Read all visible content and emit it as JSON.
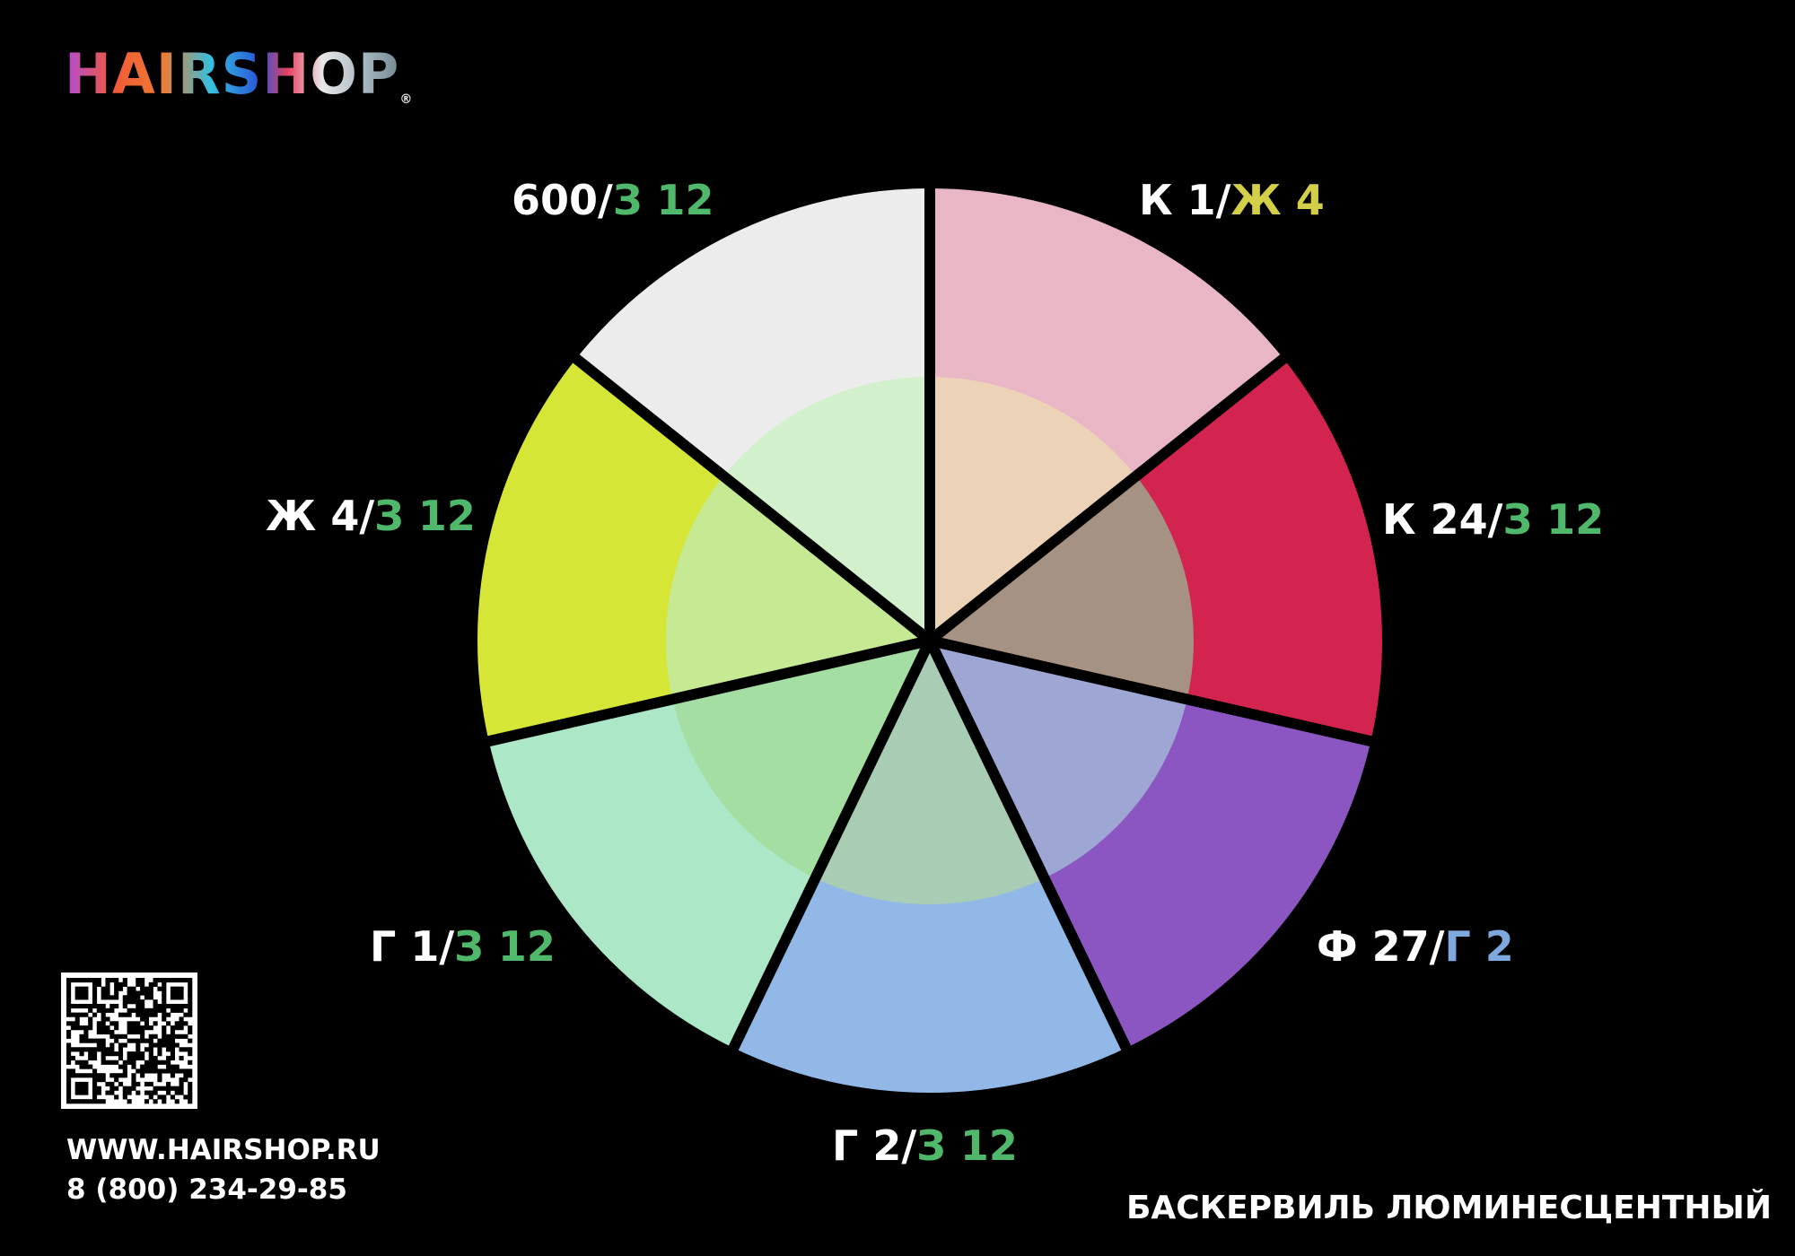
{
  "brand": {
    "logo_text": "HAIRSHOP",
    "registered_mark": "®"
  },
  "product_title": "БАСКЕРВИЛЬ ЛЮМИНЕСЦЕНТНЫЙ",
  "contact": {
    "website": "WWW.HAIRSHOP.RU",
    "phone": "8 (800) 234-29-85"
  },
  "colors": {
    "green": "#4fb86a",
    "yellow": "#d4cf48",
    "blue": "#7ea8de",
    "white": "#ffffff"
  },
  "wheel": {
    "segments": [
      {
        "label_main": "К 1/",
        "label_accent": "Ж 4",
        "accent_color": "#d4cf48",
        "outer_color": "#e8b6c4",
        "inner_color": "#ecd3b8"
      },
      {
        "label_main": "К 24/",
        "label_accent": "З 12",
        "accent_color": "#4fb86a",
        "outer_color": "#d3234f",
        "inner_color": "#a69282"
      },
      {
        "label_main": "Ф 27/",
        "label_accent": "Г 2",
        "accent_color": "#7ea8de",
        "outer_color": "#8c56c2",
        "inner_color": "#9ea6d4"
      },
      {
        "label_main": "Г 2/",
        "label_accent": "З 12",
        "accent_color": "#4fb86a",
        "outer_color": "#92b8e8",
        "inner_color": "#a9cdb4"
      },
      {
        "label_main": "Г 1/",
        "label_accent": "З 12",
        "accent_color": "#4fb86a",
        "outer_color": "#ace7c8",
        "inner_color": "#a4dea2"
      },
      {
        "label_main": "Ж 4/",
        "label_accent": "З 12",
        "accent_color": "#4fb86a",
        "outer_color": "#d6e636",
        "inner_color": "#c6ea94"
      },
      {
        "label_main": "600/",
        "label_accent": "З 12",
        "accent_color": "#4fb86a",
        "outer_color": "#ececec",
        "inner_color": "#d2f0cc"
      }
    ]
  }
}
